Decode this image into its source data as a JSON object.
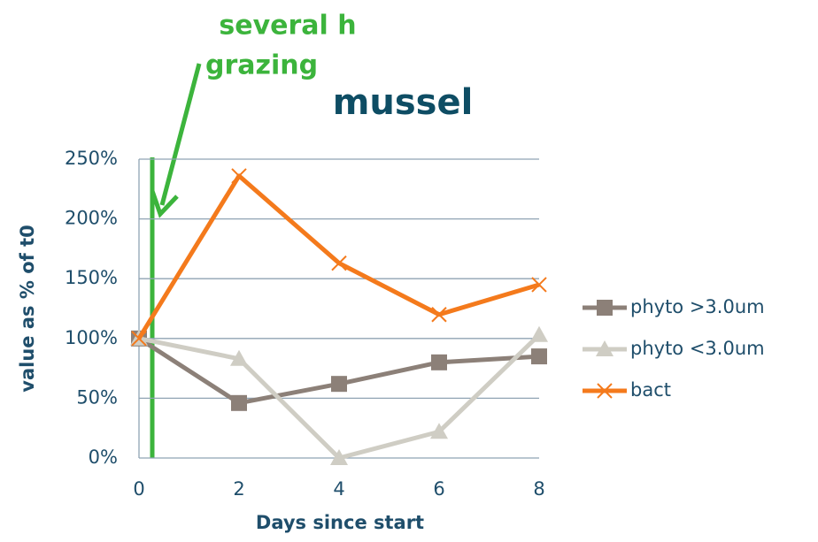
{
  "chart_data": {
    "type": "line",
    "title": "mussel",
    "annotation": [
      "several h",
      "grazing"
    ],
    "x_label": "Days since start",
    "y_label": "value as % of t0",
    "x": [
      0,
      2,
      4,
      6,
      8
    ],
    "xlim": [
      0,
      8
    ],
    "xticks": [
      0,
      2,
      4,
      6,
      8
    ],
    "ylim": [
      0,
      250
    ],
    "yticks": [
      {
        "value": 0,
        "label": "0%"
      },
      {
        "value": 50,
        "label": "50%"
      },
      {
        "value": 100,
        "label": "100%"
      },
      {
        "value": 150,
        "label": "150%"
      },
      {
        "value": 200,
        "label": "200%"
      },
      {
        "value": 250,
        "label": "250%"
      }
    ],
    "grid": true,
    "legend": "right",
    "series": [
      {
        "name": "phyto >3.0um",
        "color": "#8c8078",
        "marker": "square",
        "values": [
          100,
          46,
          62,
          80,
          85
        ]
      },
      {
        "name": "phyto <3.0um",
        "color": "#cfcdc4",
        "marker": "triangle",
        "values": [
          100,
          83,
          0,
          22,
          103
        ]
      },
      {
        "name": "bact",
        "color": "#f47a1c",
        "marker": "x",
        "values": [
          100,
          236,
          163,
          120,
          145
        ]
      }
    ]
  }
}
